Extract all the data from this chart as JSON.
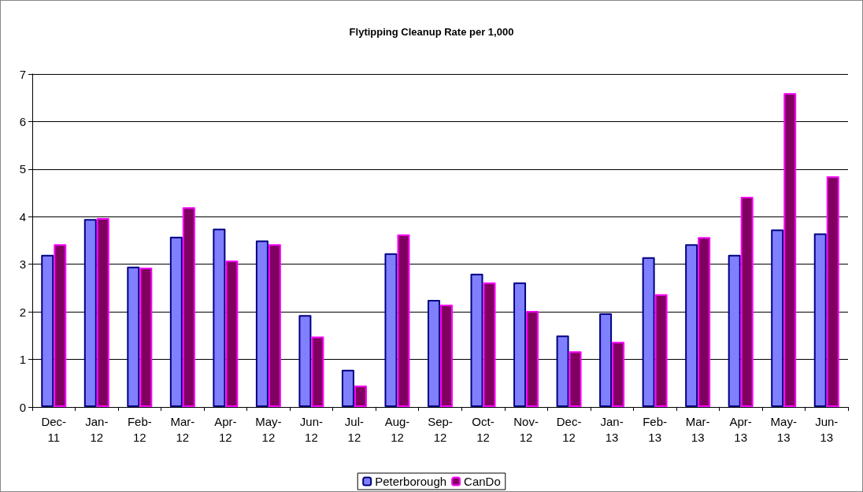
{
  "chart_data": {
    "type": "bar",
    "title": "Flytipping Cleanup Rate per 1,000",
    "categories": [
      "Dec-11",
      "Jan-12",
      "Feb-12",
      "Mar-12",
      "Apr-12",
      "May-12",
      "Jun-12",
      "Jul-12",
      "Aug-12",
      "Sep-12",
      "Oct-12",
      "Nov-12",
      "Dec-12",
      "Jan-13",
      "Feb-13",
      "Mar-13",
      "Apr-13",
      "May-13",
      "Jun-13"
    ],
    "series": [
      {
        "name": "Peterborough",
        "color": "#8080ff",
        "values": [
          3.2,
          3.95,
          2.95,
          3.58,
          3.75,
          3.5,
          1.93,
          0.78,
          3.23,
          2.25,
          2.8,
          2.62,
          1.5,
          1.97,
          3.15,
          3.42,
          3.2,
          3.73,
          3.65
        ]
      },
      {
        "name": "CanDo",
        "color": "#800060",
        "values": [
          3.42,
          3.97,
          2.93,
          4.2,
          3.08,
          3.42,
          1.48,
          0.45,
          3.63,
          2.15,
          2.62,
          2.02,
          1.17,
          1.37,
          2.37,
          3.57,
          4.42,
          6.6,
          4.85
        ]
      }
    ],
    "ylim": [
      0,
      7
    ],
    "yticks": [
      0,
      1,
      2,
      3,
      4,
      5,
      6,
      7
    ],
    "grid": "y",
    "legend": "bottom"
  }
}
